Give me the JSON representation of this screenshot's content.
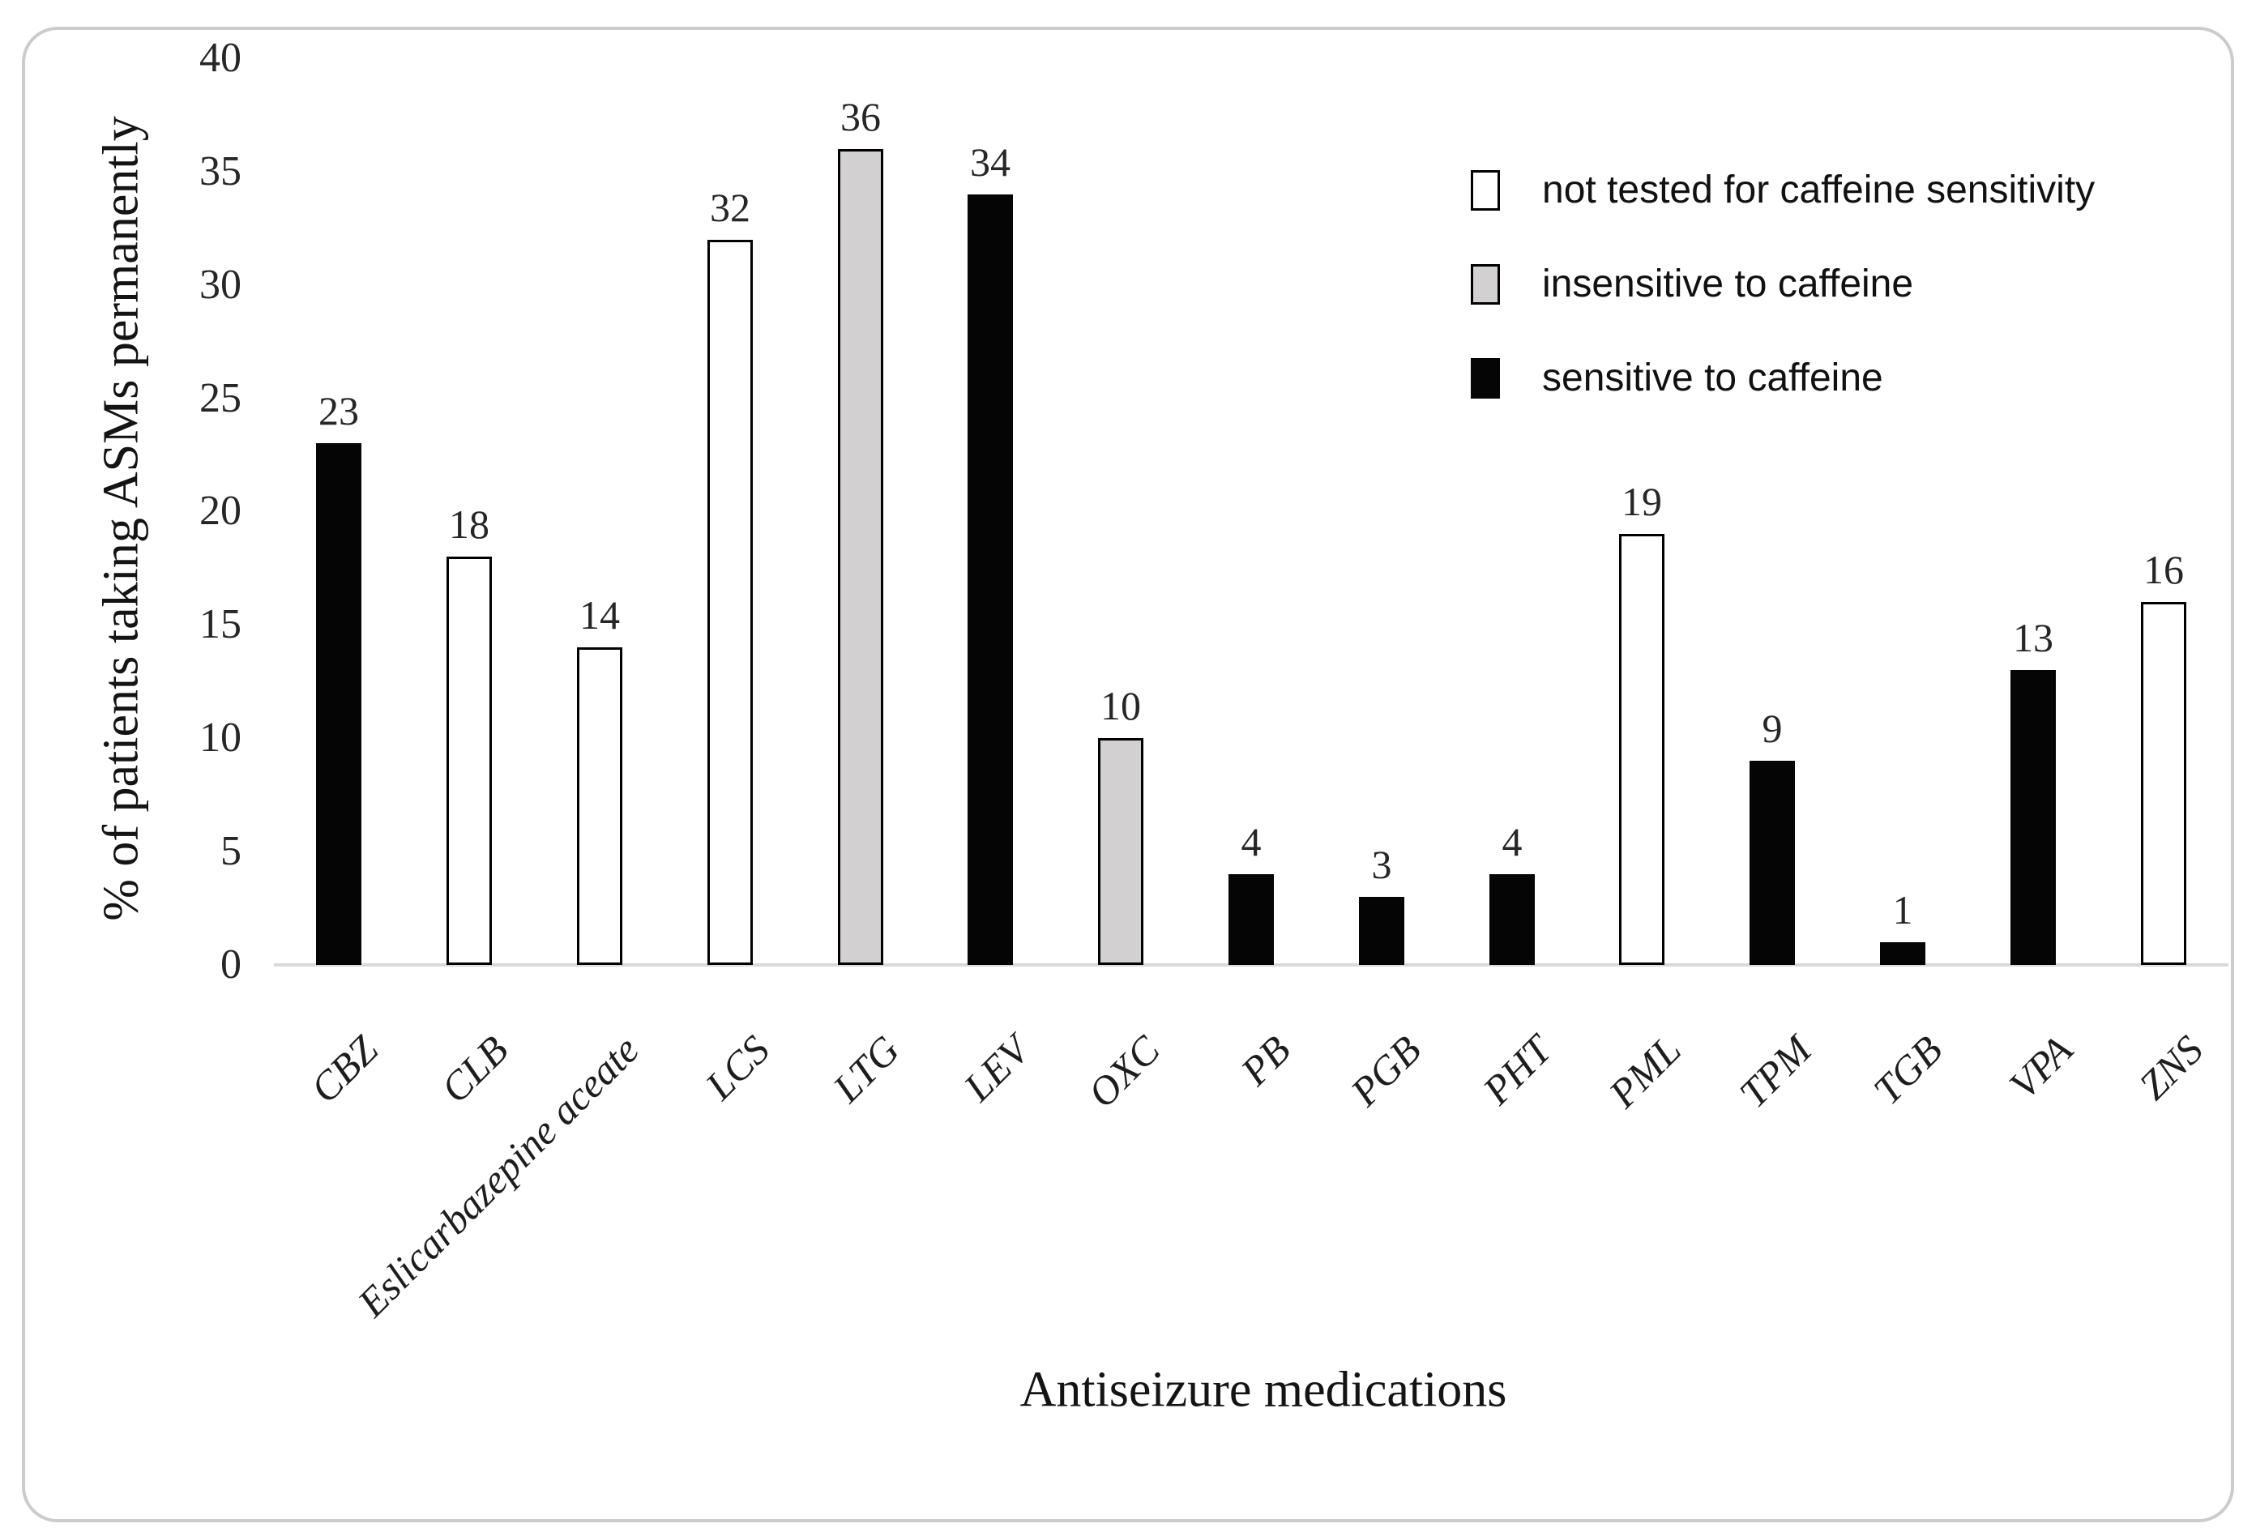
{
  "chart_data": {
    "type": "bar",
    "title": "",
    "xlabel": "Antiseizure medications",
    "ylabel": "% of patients taking ASMs permanently",
    "ylim": [
      0,
      40
    ],
    "ytick_interval": 5,
    "yticks": [
      0,
      5,
      10,
      15,
      20,
      25,
      30,
      35,
      40
    ],
    "grid": "off",
    "legend_position": "top-right",
    "data_labels_shown": true,
    "categories": [
      "CBZ",
      "CLB",
      "Eslicarbazepine aceate",
      "LCS",
      "LTG",
      "LEV",
      "OXC",
      "PB",
      "PGB",
      "PHT",
      "PML",
      "TPM",
      "TGB",
      "VPA",
      "ZNS"
    ],
    "values": [
      23,
      18,
      14,
      32,
      36,
      34,
      10,
      4,
      3,
      4,
      19,
      9,
      1,
      13,
      16
    ],
    "groups": [
      "sensitive",
      "not_tested",
      "not_tested",
      "not_tested",
      "insensitive",
      "sensitive",
      "insensitive",
      "sensitive",
      "sensitive",
      "sensitive",
      "not_tested",
      "sensitive",
      "sensitive",
      "sensitive",
      "not_tested"
    ],
    "legend": [
      {
        "key": "not_tested",
        "label": "not tested for caffeine sensitivity",
        "fill": "#ffffff",
        "stroke": "#000000"
      },
      {
        "key": "insensitive",
        "label": "insensitive to caffeine",
        "fill": "#d2d0d0",
        "stroke": "#000000"
      },
      {
        "key": "sensitive",
        "label": "sensitive to caffeine",
        "fill": "#050505",
        "stroke": "#050505"
      }
    ],
    "colors": {
      "axis_line": "#d9d9d9",
      "frame_border": "#cccccc",
      "text": "#262626"
    }
  }
}
